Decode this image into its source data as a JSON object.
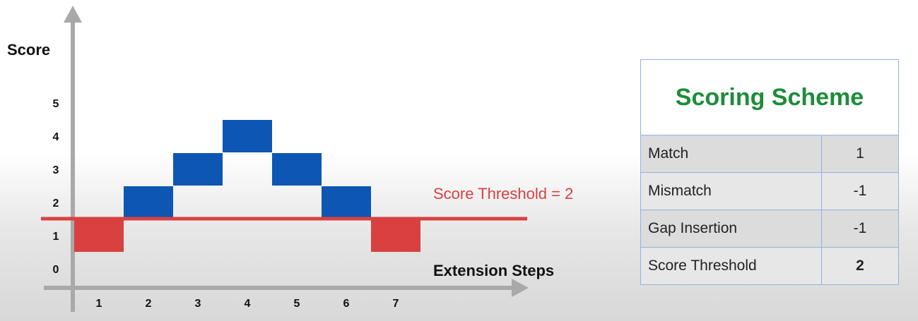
{
  "chart_data": {
    "type": "bar",
    "title": "",
    "ylabel": "Score",
    "xlabel": "Extension Steps",
    "categories": [
      "1",
      "2",
      "3",
      "4",
      "5",
      "6",
      "7"
    ],
    "y_ticks": [
      "0",
      "1",
      "2",
      "3",
      "4",
      "5"
    ],
    "values": [
      1,
      2,
      3,
      4,
      3,
      2,
      1
    ],
    "threshold": {
      "value": 2,
      "label": "Score Threshold = 2",
      "color": "#d94040"
    },
    "colors": {
      "above_threshold": "#0d56b4",
      "below_threshold": "#d94040"
    },
    "ylim": [
      0,
      6
    ],
    "grid": false,
    "legend": "none"
  },
  "scoring_scheme": {
    "title": "Scoring Scheme",
    "rows": [
      {
        "label": "Match",
        "value": "1",
        "bold": false
      },
      {
        "label": "Mismatch",
        "value": "-1",
        "bold": false
      },
      {
        "label": "Gap Insertion",
        "value": "-1",
        "bold": false
      },
      {
        "label": "Score Threshold",
        "value": "2",
        "bold": true
      }
    ]
  }
}
